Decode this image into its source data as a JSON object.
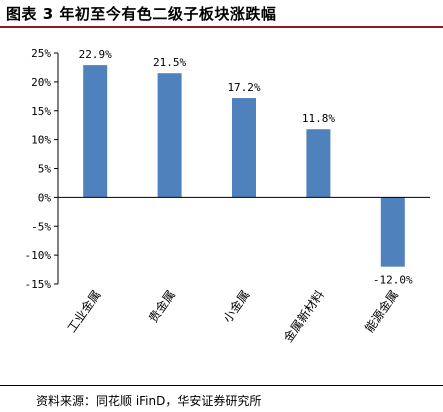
{
  "title": "图表 3  年初至今有色二级子板块涨跌幅",
  "source": "资料来源：同花顺 iFinD，华安证券研究所",
  "colors": {
    "bar": "#4f81bd",
    "title_rule": "#8b1a2b"
  },
  "chart_data": {
    "type": "bar",
    "title": "图表 3  年初至今有色二级子板块涨跌幅",
    "categories": [
      "工业金属",
      "贵金属",
      "小金属",
      "金属新材料",
      "能源金属"
    ],
    "values": [
      22.9,
      21.5,
      17.2,
      11.8,
      -12.0
    ],
    "data_labels": [
      "22.9%",
      "21.5%",
      "17.2%",
      "11.8%",
      "-12.0%"
    ],
    "y_ticks": [
      25,
      20,
      15,
      10,
      5,
      0,
      -5,
      -10,
      -15
    ],
    "y_tick_labels": [
      "25%",
      "20%",
      "15%",
      "10%",
      "5%",
      "0%",
      "-5%",
      "-10%",
      "-15%"
    ],
    "ylim": [
      -15,
      25
    ],
    "grid": false,
    "legend": "none"
  }
}
